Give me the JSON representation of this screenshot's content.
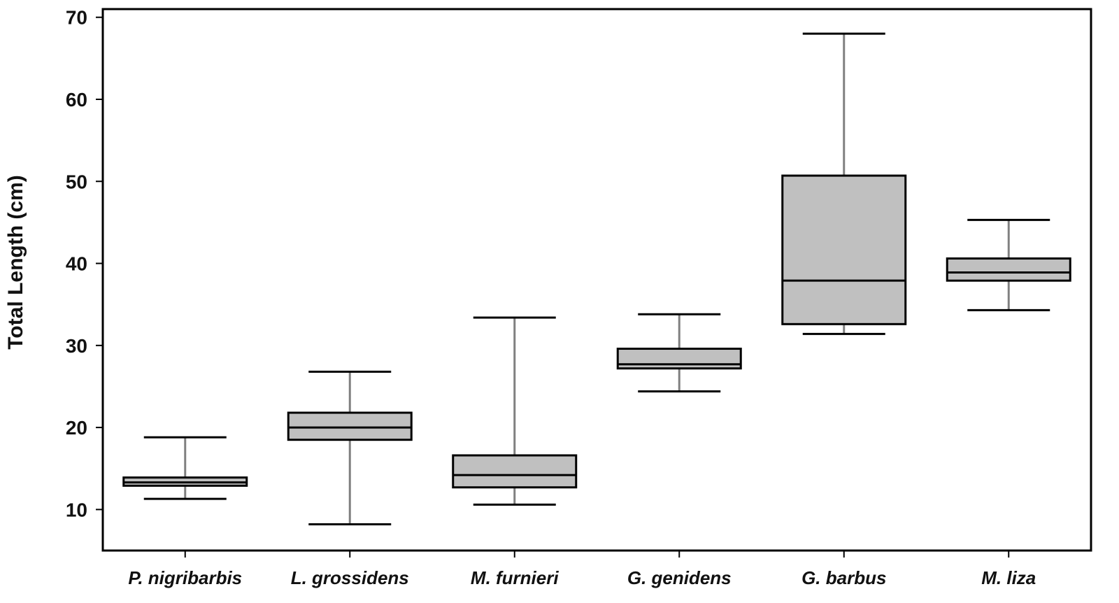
{
  "chart_data": {
    "type": "boxplot",
    "title": "",
    "xlabel": "",
    "ylabel": "Total Length (cm)",
    "ylim": [
      5,
      71
    ],
    "yticks": [
      10,
      20,
      30,
      40,
      50,
      60,
      70
    ],
    "grid": false,
    "legend": "none",
    "box_color": "#c0c0c0",
    "categories": [
      "P. nigribarbis",
      "L. grossidens",
      "M. furnieri",
      "G. genidens",
      "G. barbus",
      "M. liza"
    ],
    "boxes": [
      {
        "whisker_low": 11.3,
        "q1": 12.9,
        "median": 13.3,
        "q3": 13.9,
        "whisker_high": 18.8
      },
      {
        "whisker_low": 8.2,
        "q1": 18.5,
        "median": 20.0,
        "q3": 21.8,
        "whisker_high": 26.8
      },
      {
        "whisker_low": 10.6,
        "q1": 12.7,
        "median": 14.2,
        "q3": 16.6,
        "whisker_high": 33.4
      },
      {
        "whisker_low": 24.4,
        "q1": 27.2,
        "median": 27.7,
        "q3": 29.6,
        "whisker_high": 33.8
      },
      {
        "whisker_low": 31.4,
        "q1": 32.6,
        "median": 37.9,
        "q3": 50.7,
        "whisker_high": 68.0
      },
      {
        "whisker_low": 34.3,
        "q1": 37.9,
        "median": 38.9,
        "q3": 40.6,
        "whisker_high": 45.3
      }
    ]
  }
}
